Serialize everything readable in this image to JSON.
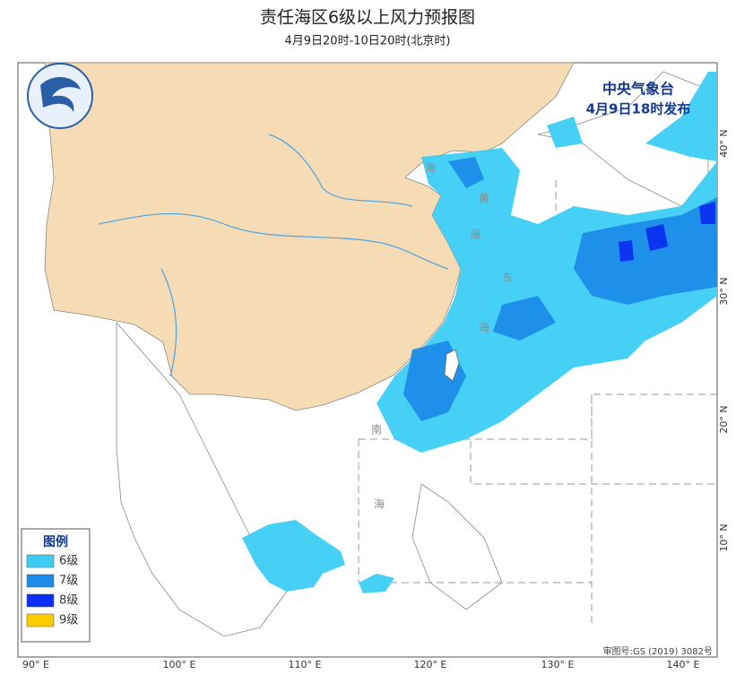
{
  "header": {
    "title": "责任海区6级以上风力预报图",
    "subtitle": "4月9日20时-10日20时(北京时)"
  },
  "issuer": {
    "name": "中央气象台",
    "time": "4月9日18时发布"
  },
  "legend": {
    "title": "图例",
    "items": [
      {
        "label": "6级",
        "color": "#3ccdf5"
      },
      {
        "label": "7级",
        "color": "#1e8ce8"
      },
      {
        "label": "8级",
        "color": "#0a2ff0"
      },
      {
        "label": "9级",
        "color": "#ffcc00"
      }
    ]
  },
  "map": {
    "longitude_labels": [
      "90° E",
      "100° E",
      "110° E",
      "120° E",
      "130° E",
      "140° E"
    ],
    "latitude_labels": [
      "40° N",
      "30° N",
      "20° N",
      "10° N"
    ],
    "sea_labels": [
      "海",
      "黄",
      "海",
      "东",
      "海",
      "南",
      "海"
    ]
  },
  "footer": {
    "approval": "审图号:GS (2019) 3082号"
  }
}
